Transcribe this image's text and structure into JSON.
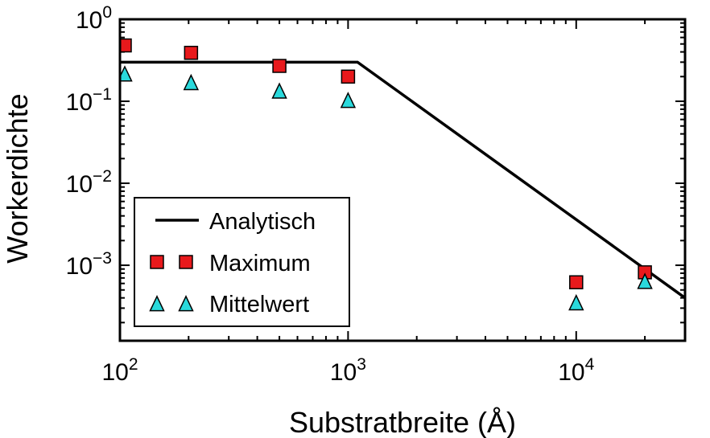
{
  "chart_data": {
    "type": "scatter",
    "title": "",
    "xlabel": "Substratbreite (Å)",
    "ylabel": "Workerdichte",
    "xscale": "log",
    "yscale": "log",
    "xlim": [
      100,
      30000
    ],
    "ylim": [
      0.00012,
      1
    ],
    "x_ticks": [
      {
        "value": 100,
        "base": "10",
        "exp": "2"
      },
      {
        "value": 1000,
        "base": "10",
        "exp": "3"
      },
      {
        "value": 10000,
        "base": "10",
        "exp": "4"
      }
    ],
    "y_ticks": [
      {
        "value": 1,
        "base": "10",
        "exp": "0"
      },
      {
        "value": 0.1,
        "base": "10",
        "exp": "−1"
      },
      {
        "value": 0.01,
        "base": "10",
        "exp": "−2"
      },
      {
        "value": 0.001,
        "base": "10",
        "exp": "−3"
      }
    ],
    "grid": false,
    "legend_position": "lower-left",
    "series": [
      {
        "name": "Analytisch",
        "kind": "line",
        "color": "#000000",
        "x": [
          100,
          1100,
          30000
        ],
        "y": [
          0.3,
          0.3,
          0.0004
        ]
      },
      {
        "name": "Maximum",
        "kind": "marker-square",
        "color": "#e8191c",
        "x": [
          105,
          205,
          500,
          1000,
          10000,
          20000
        ],
        "y": [
          0.48,
          0.39,
          0.27,
          0.2,
          0.00062,
          0.00082
        ]
      },
      {
        "name": "Mittelwert",
        "kind": "marker-triangle",
        "color": "#2ad9dc",
        "x": [
          105,
          205,
          500,
          1000,
          10000,
          20000
        ],
        "y": [
          0.21,
          0.165,
          0.13,
          0.1,
          0.00034,
          0.00062
        ]
      }
    ]
  }
}
